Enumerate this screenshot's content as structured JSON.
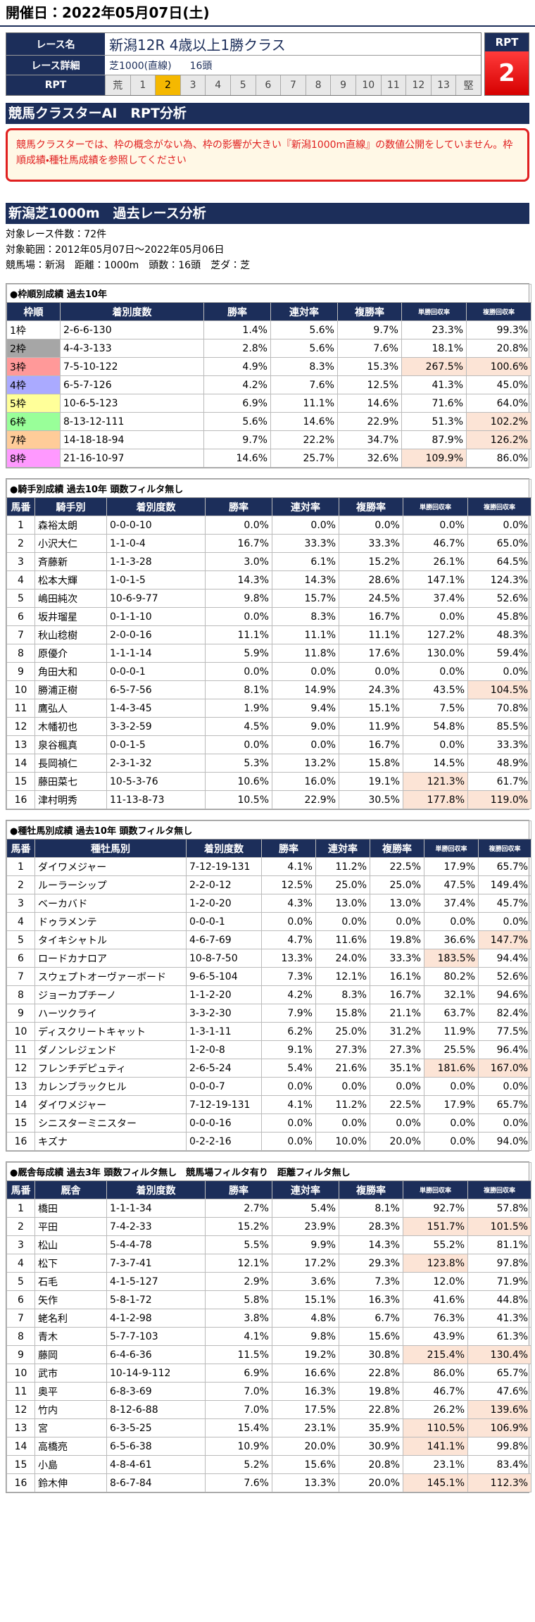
{
  "header": {
    "date": "開催日：2022年05月07日(土)"
  },
  "race": {
    "label_name": "レース名",
    "label_detail": "レース詳細",
    "label_rpt": "RPT",
    "name": "新潟12R 4歳以上1勝クラス",
    "detail": "芝1000(直線)",
    "runners": "16頭",
    "rpt_scale": [
      "荒",
      1,
      2,
      3,
      4,
      5,
      6,
      7,
      8,
      9,
      10,
      11,
      12,
      13,
      "堅"
    ],
    "rpt_box_label": "RPT",
    "rpt_value": 2
  },
  "ai_section": {
    "title": "競馬クラスターAI　RPT分析",
    "notice": "競馬クラスターでは、枠の概念がない為、枠の影響が大きい『新潟1000m直線』の数値公開をしていません。枠順成績・種牡馬成績を参照してください"
  },
  "analysis": {
    "title": "新潟芝1000m　過去レース分析",
    "info": [
      "対象レース件数：72件",
      "対象範囲：2012年05月07日～2022年05月06日",
      "競馬場：新潟　距離：1000m　頭数：16頭　芝ダ：芝"
    ]
  },
  "tables": [
    {
      "title": "●枠順別成績 過去10年",
      "headers": [
        "枠順",
        "着別度数",
        "勝率",
        "連対率",
        "複勝率",
        "単勝回収率",
        "複勝回収率"
      ],
      "frame_colors": [
        "#ffffff",
        "#a6a6a6",
        "#ff9999",
        "#aaaaff",
        "#ffff99",
        "#99ff99",
        "#ffcc99",
        "#ff99ff"
      ],
      "rows": [
        [
          "1枠",
          "2-6-6-130",
          "1.4%",
          "5.6%",
          "9.7%",
          "23.3%",
          "99.3%"
        ],
        [
          "2枠",
          "4-4-3-133",
          "2.8%",
          "5.6%",
          "7.6%",
          "18.1%",
          "20.8%"
        ],
        [
          "3枠",
          "7-5-10-122",
          "4.9%",
          "8.3%",
          "15.3%",
          "267.5%",
          "100.6%"
        ],
        [
          "4枠",
          "6-5-7-126",
          "4.2%",
          "7.6%",
          "12.5%",
          "41.3%",
          "45.0%"
        ],
        [
          "5枠",
          "10-6-5-123",
          "6.9%",
          "11.1%",
          "14.6%",
          "71.6%",
          "64.0%"
        ],
        [
          "6枠",
          "8-13-12-111",
          "5.6%",
          "14.6%",
          "22.9%",
          "51.3%",
          "102.2%"
        ],
        [
          "7枠",
          "14-18-18-94",
          "9.7%",
          "22.2%",
          "34.7%",
          "87.9%",
          "126.2%"
        ],
        [
          "8枠",
          "21-16-10-97",
          "14.6%",
          "25.7%",
          "32.6%",
          "109.9%",
          "86.0%"
        ]
      ],
      "highlight": [
        [
          2,
          5
        ],
        [
          2,
          6
        ],
        [
          5,
          6
        ],
        [
          6,
          6
        ],
        [
          7,
          5
        ]
      ]
    },
    {
      "title": "●騎手別成績 過去10年 頭数フィルタ無し",
      "headers": [
        "馬番",
        "騎手別",
        "着別度数",
        "勝率",
        "連対率",
        "複勝率",
        "単勝回収率",
        "複勝回収率"
      ],
      "rows": [
        [
          1,
          "森裕太朗",
          "0-0-0-10",
          "0.0%",
          "0.0%",
          "0.0%",
          "0.0%",
          "0.0%"
        ],
        [
          2,
          "小沢大仁",
          "1-1-0-4",
          "16.7%",
          "33.3%",
          "33.3%",
          "46.7%",
          "65.0%"
        ],
        [
          3,
          "斉藤新",
          "1-1-3-28",
          "3.0%",
          "6.1%",
          "15.2%",
          "26.1%",
          "64.5%"
        ],
        [
          4,
          "松本大輝",
          "1-0-1-5",
          "14.3%",
          "14.3%",
          "28.6%",
          "147.1%",
          "124.3%"
        ],
        [
          5,
          "嶋田純次",
          "10-6-9-77",
          "9.8%",
          "15.7%",
          "24.5%",
          "37.4%",
          "52.6%"
        ],
        [
          6,
          "坂井瑠星",
          "0-1-1-10",
          "0.0%",
          "8.3%",
          "16.7%",
          "0.0%",
          "45.8%"
        ],
        [
          7,
          "秋山稔樹",
          "2-0-0-16",
          "11.1%",
          "11.1%",
          "11.1%",
          "127.2%",
          "48.3%"
        ],
        [
          8,
          "原優介",
          "1-1-1-14",
          "5.9%",
          "11.8%",
          "17.6%",
          "130.0%",
          "59.4%"
        ],
        [
          9,
          "角田大和",
          "0-0-0-1",
          "0.0%",
          "0.0%",
          "0.0%",
          "0.0%",
          "0.0%"
        ],
        [
          10,
          "勝浦正樹",
          "6-5-7-56",
          "8.1%",
          "14.9%",
          "24.3%",
          "43.5%",
          "104.5%"
        ],
        [
          11,
          "鷹弘人",
          "1-4-3-45",
          "1.9%",
          "9.4%",
          "15.1%",
          "7.5%",
          "70.8%"
        ],
        [
          12,
          "木幡初也",
          "3-3-2-59",
          "4.5%",
          "9.0%",
          "11.9%",
          "54.8%",
          "85.5%"
        ],
        [
          13,
          "泉谷楓真",
          "0-0-1-5",
          "0.0%",
          "0.0%",
          "16.7%",
          "0.0%",
          "33.3%"
        ],
        [
          14,
          "長岡禎仁",
          "2-3-1-32",
          "5.3%",
          "13.2%",
          "15.8%",
          "14.5%",
          "48.9%"
        ],
        [
          15,
          "藤田菜七",
          "10-5-3-76",
          "10.6%",
          "16.0%",
          "19.1%",
          "121.3%",
          "61.7%"
        ],
        [
          16,
          "津村明秀",
          "11-13-8-73",
          "10.5%",
          "22.9%",
          "30.5%",
          "177.8%",
          "119.0%"
        ]
      ],
      "highlight": [
        [
          9,
          7
        ],
        [
          14,
          6
        ],
        [
          15,
          6
        ],
        [
          15,
          7
        ]
      ]
    },
    {
      "title": "●種牡馬別成績 過去10年 頭数フィルタ無し",
      "headers": [
        "馬番",
        "種牡馬別",
        "着別度数",
        "勝率",
        "連対率",
        "複勝率",
        "単勝回収率",
        "複勝回収率"
      ],
      "rows": [
        [
          1,
          "ダイワメジャー",
          "7-12-19-131",
          "4.1%",
          "11.2%",
          "22.5%",
          "17.9%",
          "65.7%"
        ],
        [
          2,
          "ルーラーシップ",
          "2-2-0-12",
          "12.5%",
          "25.0%",
          "25.0%",
          "47.5%",
          "149.4%"
        ],
        [
          3,
          "ベーカバド",
          "1-2-0-20",
          "4.3%",
          "13.0%",
          "13.0%",
          "37.4%",
          "45.7%"
        ],
        [
          4,
          "ドゥラメンテ",
          "0-0-0-1",
          "0.0%",
          "0.0%",
          "0.0%",
          "0.0%",
          "0.0%"
        ],
        [
          5,
          "タイキシャトル",
          "4-6-7-69",
          "4.7%",
          "11.6%",
          "19.8%",
          "36.6%",
          "147.7%"
        ],
        [
          6,
          "ロードカナロア",
          "10-8-7-50",
          "13.3%",
          "24.0%",
          "33.3%",
          "183.5%",
          "94.4%"
        ],
        [
          7,
          "スウェプトオーヴァーボード",
          "9-6-5-104",
          "7.3%",
          "12.1%",
          "16.1%",
          "80.2%",
          "52.6%"
        ],
        [
          8,
          "ジョーカプチーノ",
          "1-1-2-20",
          "4.2%",
          "8.3%",
          "16.7%",
          "32.1%",
          "94.6%"
        ],
        [
          9,
          "ハーツクライ",
          "3-3-2-30",
          "7.9%",
          "15.8%",
          "21.1%",
          "63.7%",
          "82.4%"
        ],
        [
          10,
          "ディスクリートキャット",
          "1-3-1-11",
          "6.2%",
          "25.0%",
          "31.2%",
          "11.9%",
          "77.5%"
        ],
        [
          11,
          "ダノンレジェンド",
          "1-2-0-8",
          "9.1%",
          "27.3%",
          "27.3%",
          "25.5%",
          "96.4%"
        ],
        [
          12,
          "フレンチデピュティ",
          "2-6-5-24",
          "5.4%",
          "21.6%",
          "35.1%",
          "181.6%",
          "167.0%"
        ],
        [
          13,
          "カレンブラックヒル",
          "0-0-0-7",
          "0.0%",
          "0.0%",
          "0.0%",
          "0.0%",
          "0.0%"
        ],
        [
          14,
          "ダイワメジャー",
          "7-12-19-131",
          "4.1%",
          "11.2%",
          "22.5%",
          "17.9%",
          "65.7%"
        ],
        [
          15,
          "シニスターミニスター",
          "0-0-0-16",
          "0.0%",
          "0.0%",
          "0.0%",
          "0.0%",
          "0.0%"
        ],
        [
          16,
          "キズナ",
          "0-2-2-16",
          "0.0%",
          "10.0%",
          "20.0%",
          "0.0%",
          "94.0%"
        ]
      ],
      "highlight": [
        [
          4,
          7
        ],
        [
          5,
          6
        ],
        [
          11,
          6
        ],
        [
          11,
          7
        ]
      ]
    },
    {
      "title": "●厩舎毎成績 過去3年 頭数フィルタ無し　競馬場フィルタ有り　距離フィルタ無し",
      "headers": [
        "馬番",
        "厩舎",
        "着別度数",
        "勝率",
        "連対率",
        "複勝率",
        "単勝回収率",
        "複勝回収率"
      ],
      "rows": [
        [
          1,
          "橋田",
          "1-1-1-34",
          "2.7%",
          "5.4%",
          "8.1%",
          "92.7%",
          "57.8%"
        ],
        [
          2,
          "平田",
          "7-4-2-33",
          "15.2%",
          "23.9%",
          "28.3%",
          "151.7%",
          "101.5%"
        ],
        [
          3,
          "松山",
          "5-4-4-78",
          "5.5%",
          "9.9%",
          "14.3%",
          "55.2%",
          "81.1%"
        ],
        [
          4,
          "松下",
          "7-3-7-41",
          "12.1%",
          "17.2%",
          "29.3%",
          "123.8%",
          "97.8%"
        ],
        [
          5,
          "石毛",
          "4-1-5-127",
          "2.9%",
          "3.6%",
          "7.3%",
          "12.0%",
          "71.9%"
        ],
        [
          6,
          "矢作",
          "5-8-1-72",
          "5.8%",
          "15.1%",
          "16.3%",
          "41.6%",
          "44.8%"
        ],
        [
          7,
          "蛯名利",
          "4-1-2-98",
          "3.8%",
          "4.8%",
          "6.7%",
          "76.3%",
          "41.3%"
        ],
        [
          8,
          "青木",
          "5-7-7-103",
          "4.1%",
          "9.8%",
          "15.6%",
          "43.9%",
          "61.3%"
        ],
        [
          9,
          "藤岡",
          "6-4-6-36",
          "11.5%",
          "19.2%",
          "30.8%",
          "215.4%",
          "130.4%"
        ],
        [
          10,
          "武市",
          "10-14-9-112",
          "6.9%",
          "16.6%",
          "22.8%",
          "86.0%",
          "65.7%"
        ],
        [
          11,
          "奥平",
          "6-8-3-69",
          "7.0%",
          "16.3%",
          "19.8%",
          "46.7%",
          "47.6%"
        ],
        [
          12,
          "竹内",
          "8-12-6-88",
          "7.0%",
          "17.5%",
          "22.8%",
          "26.2%",
          "139.6%"
        ],
        [
          13,
          "宮",
          "6-3-5-25",
          "15.4%",
          "23.1%",
          "35.9%",
          "110.5%",
          "106.9%"
        ],
        [
          14,
          "高橋亮",
          "6-5-6-38",
          "10.9%",
          "20.0%",
          "30.9%",
          "141.1%",
          "99.8%"
        ],
        [
          15,
          "小島",
          "4-8-4-61",
          "5.2%",
          "15.6%",
          "20.8%",
          "23.1%",
          "83.4%"
        ],
        [
          16,
          "鈴木伸",
          "8-6-7-84",
          "7.6%",
          "13.3%",
          "20.0%",
          "145.1%",
          "112.3%"
        ]
      ],
      "highlight": [
        [
          1,
          6
        ],
        [
          1,
          7
        ],
        [
          3,
          6
        ],
        [
          8,
          6
        ],
        [
          8,
          7
        ],
        [
          11,
          7
        ],
        [
          12,
          6
        ],
        [
          12,
          7
        ],
        [
          13,
          6
        ],
        [
          15,
          6
        ],
        [
          15,
          7
        ]
      ]
    }
  ]
}
